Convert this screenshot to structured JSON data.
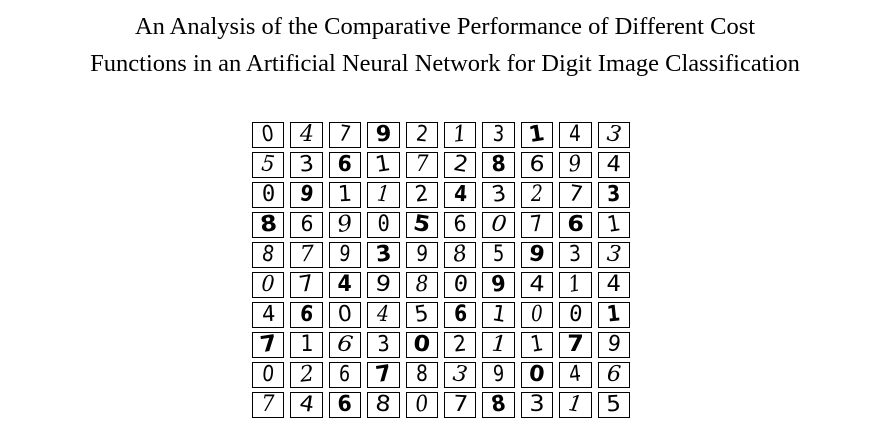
{
  "title": {
    "line1": "An Analysis of the Comparative Performance of Different Cost",
    "line2": "Functions in an Artificial Neural Network for Digit Image Classification"
  },
  "figure": {
    "rows": [
      [
        "0",
        "4",
        "7",
        "9",
        "2",
        "1",
        "3",
        "1",
        "4",
        "3"
      ],
      [
        "5",
        "3",
        "6",
        "1",
        "7",
        "2",
        "8",
        "6",
        "9",
        "4"
      ],
      [
        "0",
        "9",
        "1",
        "1",
        "2",
        "4",
        "3",
        "2",
        "7",
        "3"
      ],
      [
        "8",
        "6",
        "9",
        "0",
        "5",
        "6",
        "0",
        "7",
        "6",
        "1"
      ],
      [
        "8",
        "7",
        "9",
        "3",
        "9",
        "8",
        "5",
        "9",
        "3",
        "3"
      ],
      [
        "0",
        "7",
        "4",
        "9",
        "8",
        "0",
        "9",
        "4",
        "1",
        "4"
      ],
      [
        "4",
        "6",
        "0",
        "4",
        "5",
        "6",
        "1",
        "0",
        "0",
        "1"
      ],
      [
        "7",
        "1",
        "6",
        "3",
        "0",
        "2",
        "1",
        "1",
        "7",
        "9"
      ],
      [
        "0",
        "2",
        "6",
        "7",
        "8",
        "3",
        "9",
        "0",
        "4",
        "6"
      ],
      [
        "7",
        "4",
        "6",
        "8",
        "0",
        "7",
        "8",
        "3",
        "1",
        "5"
      ]
    ]
  }
}
